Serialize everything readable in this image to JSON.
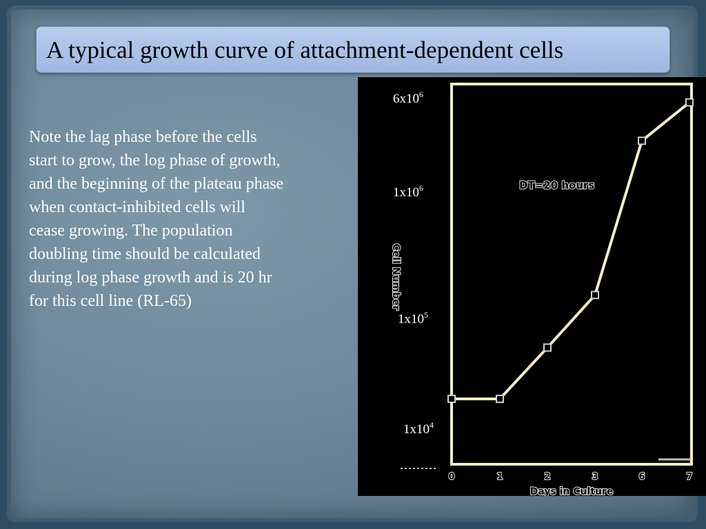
{
  "slide": {
    "title": "A typical growth curve of attachment-dependent cells",
    "body": "Note the lag phase before the cells start to grow, the log phase of growth, and the beginning of the plateau phase when contact-inhibited cells will cease growing. The population doubling time should be calculated during log phase growth and is 20 hr for this cell line (RL-65)"
  },
  "chart_data": {
    "type": "line",
    "title": "",
    "xlabel": "Days in Culture",
    "ylabel": "Cell Number",
    "y_scale": "log",
    "ylim": [
      10000,
      6000000
    ],
    "xlim": [
      0,
      7
    ],
    "x_ticks": [
      "0",
      "1",
      "2",
      "3",
      "6",
      "7"
    ],
    "y_ticks": [
      {
        "mantissa": "1x10",
        "exp": "4",
        "value": 10000
      },
      {
        "mantissa": "1x10",
        "exp": "5",
        "value": 100000
      },
      {
        "mantissa": "1x10",
        "exp": "6",
        "value": 1000000
      },
      {
        "mantissa": "6x10",
        "exp": "6",
        "value": 6000000
      }
    ],
    "annotation": "DT=20 hours",
    "series": [
      {
        "x": [
          0,
          1,
          2,
          3,
          6,
          7
        ],
        "y": [
          18000,
          18000,
          50000,
          140000,
          2500000,
          5000000
        ]
      }
    ],
    "colors": {
      "line": "#f3efc4",
      "frame": "#f3efc4",
      "background": "#000000"
    }
  }
}
